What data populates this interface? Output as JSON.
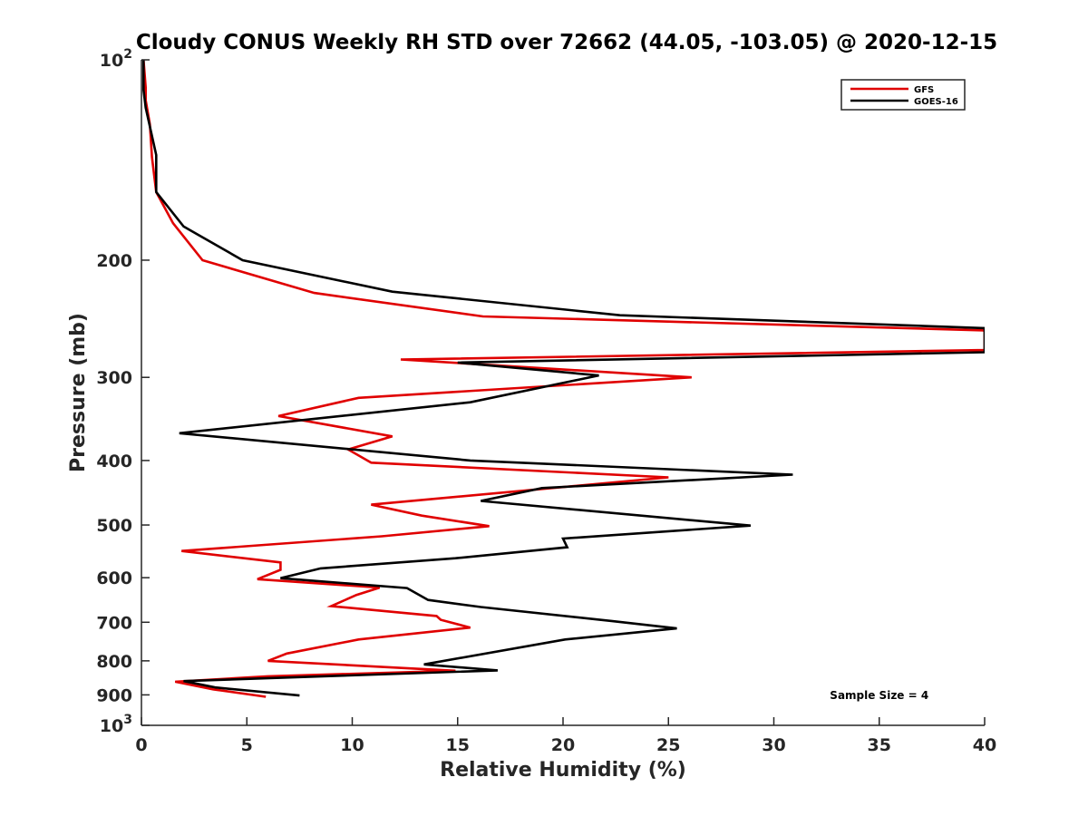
{
  "chart_data": {
    "type": "line",
    "title": "Cloudy CONUS Weekly RH STD over 72662 (44.05, -103.05) @ 2020-12-15",
    "xlabel": "Relative Humidity (%)",
    "ylabel": "Pressure (mb)",
    "xlim": [
      0,
      40
    ],
    "ylim": [
      100,
      1000
    ],
    "yscale": "log",
    "yreversed": true,
    "grid": false,
    "legend_position": "top-right",
    "x_ticks": [
      0,
      5,
      10,
      15,
      20,
      25,
      30,
      35,
      40
    ],
    "x_tick_labels": [
      "0",
      "5",
      "10",
      "15",
      "20",
      "25",
      "30",
      "35",
      "40"
    ],
    "y_ticks": [
      100,
      200,
      300,
      400,
      500,
      600,
      700,
      800,
      900,
      1000
    ],
    "y_tick_labels": [
      {
        "base": "10",
        "exp": "2"
      },
      {
        "base": "200",
        "exp": ""
      },
      {
        "base": "300",
        "exp": ""
      },
      {
        "base": "400",
        "exp": ""
      },
      {
        "base": "500",
        "exp": ""
      },
      {
        "base": "600",
        "exp": ""
      },
      {
        "base": "700",
        "exp": ""
      },
      {
        "base": "800",
        "exp": ""
      },
      {
        "base": "900",
        "exp": ""
      },
      {
        "base": "10",
        "exp": "3"
      }
    ],
    "annotation": "Sample Size = 4",
    "series": [
      {
        "name": "GFS",
        "color": "#e00000",
        "points": [
          [
            0.1,
            100
          ],
          [
            0.2,
            110
          ],
          [
            0.2,
            115
          ],
          [
            0.4,
            125
          ],
          [
            0.5,
            140
          ],
          [
            0.7,
            158
          ],
          [
            1.5,
            176
          ],
          [
            2.9,
            200
          ],
          [
            8.2,
            224
          ],
          [
            16.2,
            243
          ],
          [
            40,
            255
          ],
          [
            40,
            273
          ],
          [
            12.3,
            282
          ],
          [
            26.1,
            300
          ],
          [
            10.3,
            322
          ],
          [
            6.5,
            343
          ],
          [
            11.9,
            368
          ],
          [
            9.8,
            385
          ],
          [
            10.9,
            403
          ],
          [
            25.0,
            424
          ],
          [
            10.9,
            466
          ],
          [
            13.3,
            484
          ],
          [
            16.5,
            502
          ],
          [
            11.4,
            520
          ],
          [
            1.9,
            547
          ],
          [
            6.6,
            569
          ],
          [
            6.6,
            584
          ],
          [
            5.5,
            603
          ],
          [
            11.3,
            621
          ],
          [
            10.2,
            637
          ],
          [
            9.0,
            662
          ],
          [
            14.0,
            685
          ],
          [
            14.2,
            694
          ],
          [
            15.6,
            713
          ],
          [
            10.3,
            743
          ],
          [
            6.9,
            780
          ],
          [
            6.0,
            800
          ],
          [
            14.9,
            828
          ],
          [
            6.0,
            844
          ],
          [
            1.6,
            860
          ],
          [
            3.4,
            883
          ],
          [
            5.9,
            906
          ]
        ]
      },
      {
        "name": "GOES-16",
        "color": "#000000",
        "points": [
          [
            0.1,
            100
          ],
          [
            0.1,
            111
          ],
          [
            0.2,
            118
          ],
          [
            0.7,
            139
          ],
          [
            0.7,
            158
          ],
          [
            2.0,
            178
          ],
          [
            4.8,
            200
          ],
          [
            11.9,
            223
          ],
          [
            22.7,
            242
          ],
          [
            40,
            253
          ],
          [
            40,
            275
          ],
          [
            15.0,
            285
          ],
          [
            21.7,
            298
          ],
          [
            15.6,
            327
          ],
          [
            1.8,
            364
          ],
          [
            15.6,
            400
          ],
          [
            30.9,
            420
          ],
          [
            19.0,
            440
          ],
          [
            16.1,
            460
          ],
          [
            28.9,
            501
          ],
          [
            20.0,
            524
          ],
          [
            20.2,
            540
          ],
          [
            14.9,
            561
          ],
          [
            8.5,
            581
          ],
          [
            6.6,
            601
          ],
          [
            12.6,
            622
          ],
          [
            13.6,
            648
          ],
          [
            16.1,
            664
          ],
          [
            22.3,
            697
          ],
          [
            25.4,
            715
          ],
          [
            20.1,
            743
          ],
          [
            13.4,
            810
          ],
          [
            16.9,
            827
          ],
          [
            2.0,
            858
          ],
          [
            3.5,
            877
          ],
          [
            7.5,
            902
          ]
        ]
      }
    ]
  }
}
